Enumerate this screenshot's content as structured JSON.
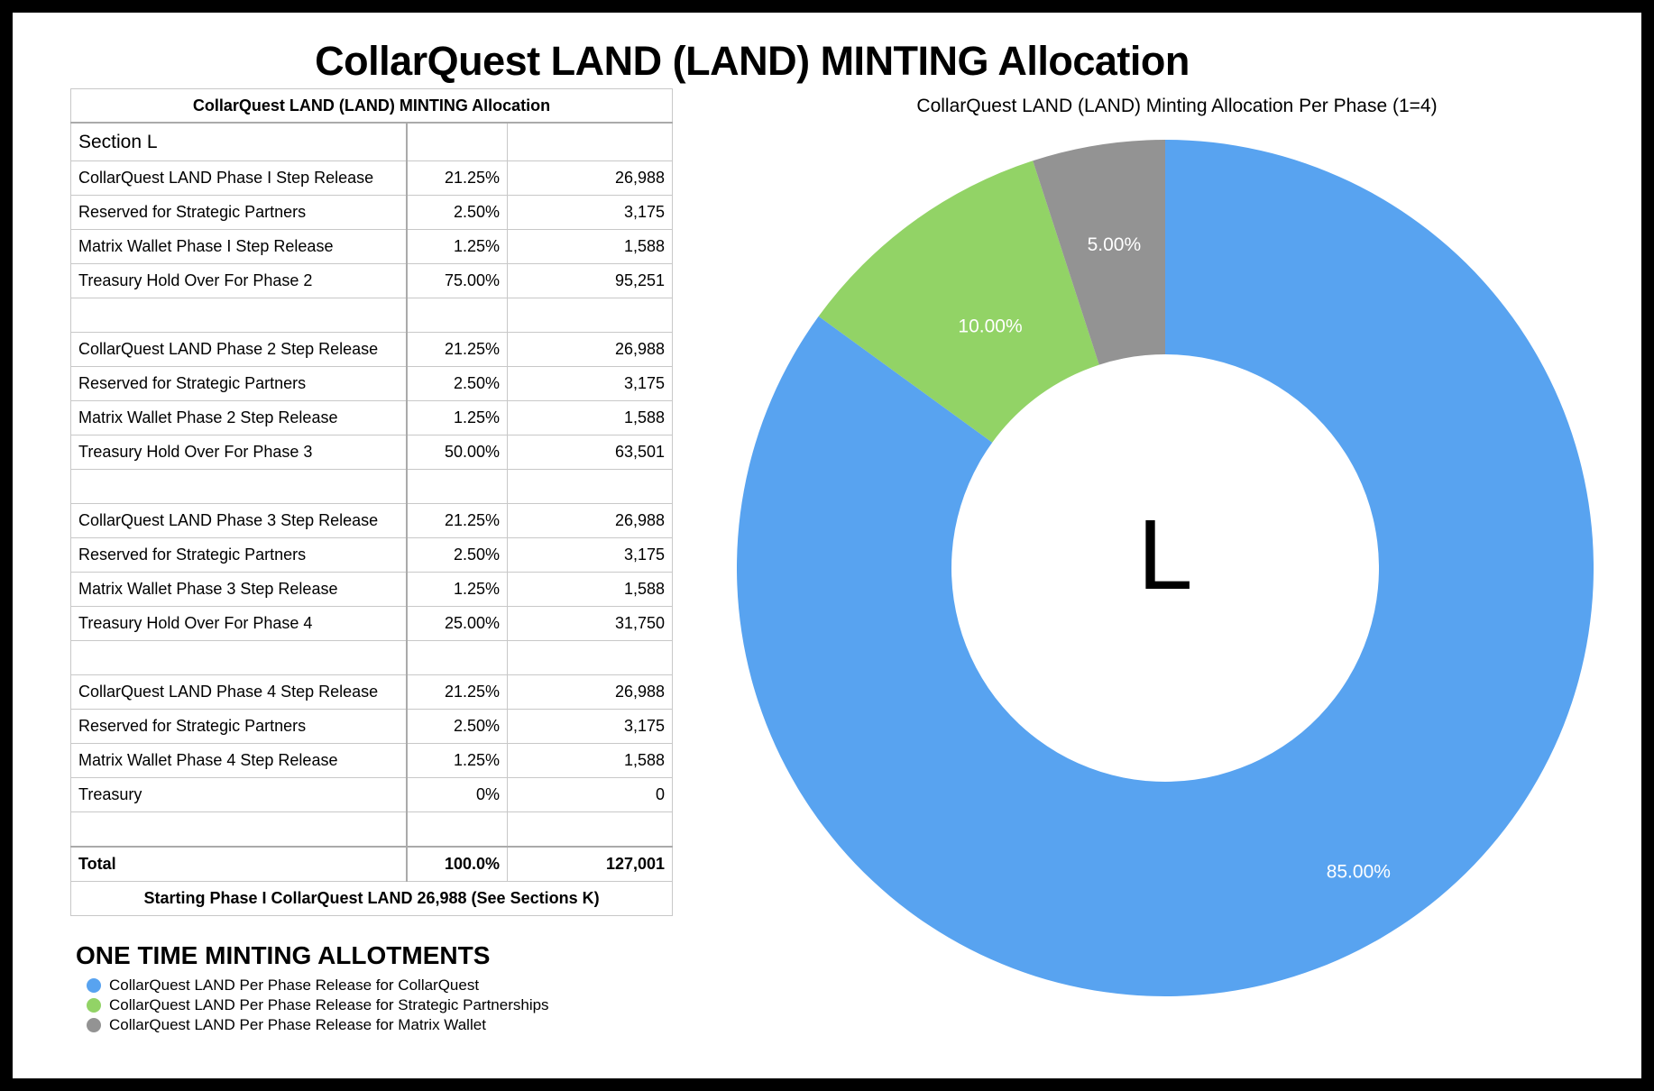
{
  "page": {
    "title": "CollarQuest LAND (LAND) MINTING Allocation"
  },
  "table": {
    "header": "CollarQuest LAND (LAND) MINTING Allocation",
    "section": "Section L",
    "rows": [
      {
        "label": "CollarQuest LAND Phase I Step Release",
        "pct": "21.25%",
        "amount": "26,988"
      },
      {
        "label": "Reserved for Strategic Partners",
        "pct": "2.50%",
        "amount": "3,175"
      },
      {
        "label": "Matrix Wallet Phase I Step Release",
        "pct": "1.25%",
        "amount": "1,588"
      },
      {
        "label": "Treasury Hold Over For Phase 2",
        "pct": "75.00%",
        "amount": "95,251"
      },
      {
        "label": "",
        "pct": "",
        "amount": ""
      },
      {
        "label": "CollarQuest LAND Phase 2 Step Release",
        "pct": "21.25%",
        "amount": "26,988"
      },
      {
        "label": "Reserved for Strategic Partners",
        "pct": "2.50%",
        "amount": "3,175"
      },
      {
        "label": "Matrix Wallet Phase 2 Step Release",
        "pct": "1.25%",
        "amount": "1,588"
      },
      {
        "label": "Treasury Hold Over For Phase 3",
        "pct": "50.00%",
        "amount": "63,501"
      },
      {
        "label": "",
        "pct": "",
        "amount": ""
      },
      {
        "label": "CollarQuest LAND Phase 3 Step Release",
        "pct": "21.25%",
        "amount": "26,988"
      },
      {
        "label": "Reserved for Strategic Partners",
        "pct": "2.50%",
        "amount": "3,175"
      },
      {
        "label": "Matrix Wallet Phase 3 Step Release",
        "pct": "1.25%",
        "amount": "1,588"
      },
      {
        "label": "Treasury Hold Over For Phase 4",
        "pct": "25.00%",
        "amount": "31,750"
      },
      {
        "label": "",
        "pct": "",
        "amount": ""
      },
      {
        "label": "CollarQuest LAND Phase 4 Step Release",
        "pct": "21.25%",
        "amount": "26,988"
      },
      {
        "label": "Reserved for Strategic Partners",
        "pct": "2.50%",
        "amount": "3,175"
      },
      {
        "label": "Matrix Wallet Phase 4 Step Release",
        "pct": "1.25%",
        "amount": "1,588"
      },
      {
        "label": "Treasury",
        "pct": "0%",
        "amount": "0"
      },
      {
        "label": "",
        "pct": "",
        "amount": ""
      }
    ],
    "total": {
      "label": "Total",
      "pct": "100.0%",
      "amount": "127,001"
    },
    "footer": "Starting Phase I CollarQuest LAND 26,988 (See Sections K)"
  },
  "legend": {
    "title": "ONE TIME MINTING ALLOTMENTS"
  },
  "chart_data": {
    "type": "pie",
    "donut": true,
    "title": "CollarQuest LAND (LAND) Minting Allocation Per Phase (1=4)",
    "center_label": "L",
    "slices": [
      {
        "name": "CollarQuest LAND Per Phase Release for CollarQuest",
        "value": 85.0,
        "label": "85.00%",
        "color": "#58A3F0"
      },
      {
        "name": "CollarQuest LAND Per Phase Release for Strategic Partnerships",
        "value": 10.0,
        "label": "10.00%",
        "color": "#92D366"
      },
      {
        "name": "CollarQuest LAND Per Phase Release for Matrix Wallet",
        "value": 5.0,
        "label": "5.00%",
        "color": "#939393"
      }
    ]
  }
}
